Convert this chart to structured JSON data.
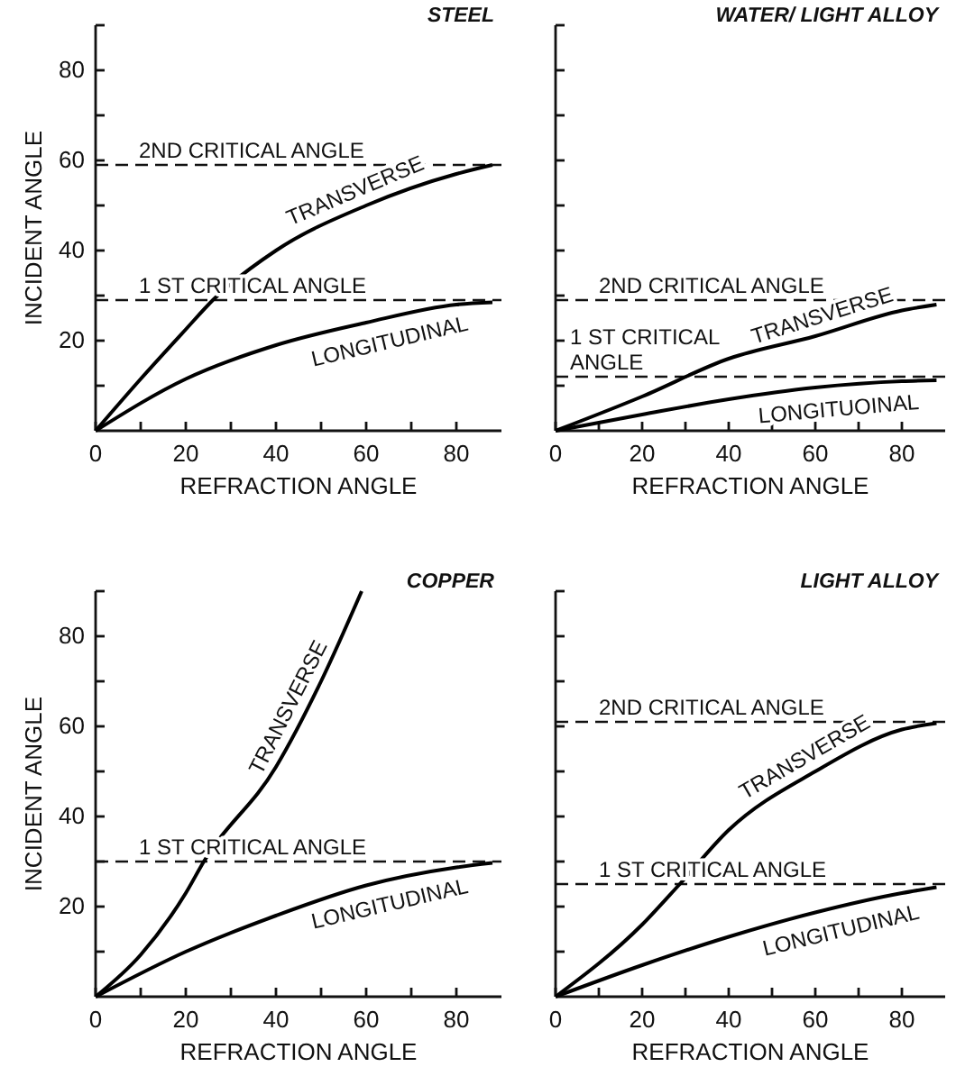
{
  "chart_data": [
    {
      "type": "line",
      "title": "STEEL",
      "xlabel": "REFRACTION ANGLE",
      "ylabel": "INCIDENT ANGLE",
      "xlim": [
        0,
        90
      ],
      "ylim": [
        0,
        90
      ],
      "xticks": [
        0,
        {
          "value": 10,
          "label": null
        },
        20,
        {
          "value": 30,
          "label": null
        },
        40,
        {
          "value": 50,
          "label": null
        },
        60,
        {
          "value": 70,
          "label": null
        },
        80
      ],
      "yticks": [
        {
          "value": 10,
          "label": null
        },
        20,
        {
          "value": 30,
          "label": null
        },
        40,
        {
          "value": 50,
          "label": null
        },
        60,
        {
          "value": 70,
          "label": null
        },
        80,
        {
          "value": 90,
          "label": null
        }
      ],
      "grid": false,
      "line_style": "solid",
      "series": [
        {
          "name": "TRANSVERSE",
          "color": "#000000",
          "x": [
            0,
            10,
            20,
            26,
            40,
            60,
            80,
            88
          ],
          "values": [
            0,
            11.5,
            22.5,
            29,
            40,
            50,
            57,
            59
          ]
        },
        {
          "name": "LONGITUDINAL",
          "color": "#000000",
          "x": [
            0,
            20,
            40,
            60,
            80,
            88
          ],
          "values": [
            0,
            11.5,
            19,
            24,
            28,
            28.5
          ]
        }
      ],
      "ref_lines": [
        {
          "axis": "y",
          "value": 59,
          "label": "2ND CRITICAL ANGLE",
          "line_style": "dashed"
        },
        {
          "axis": "y",
          "value": 29,
          "label": "1 ST CRITICAL ANGLE",
          "line_style": "dashed"
        }
      ]
    },
    {
      "type": "line",
      "title": "WATER/ LIGHT ALLOY",
      "xlabel": "REFRACTION ANGLE",
      "xlim": [
        0,
        90
      ],
      "ylim": [
        0,
        90
      ],
      "tick_labels": "x",
      "xticks": [
        0,
        {
          "value": 10,
          "label": null
        },
        20,
        {
          "value": 30,
          "label": null
        },
        40,
        {
          "value": 50,
          "label": null
        },
        60,
        {
          "value": 70,
          "label": null
        },
        80
      ],
      "yticks": [
        {
          "value": 10,
          "label": null
        },
        {
          "value": 20,
          "label": null
        },
        {
          "value": 30,
          "label": null
        },
        {
          "value": 40,
          "label": null
        },
        {
          "value": 50,
          "label": null
        },
        {
          "value": 60,
          "label": null
        },
        {
          "value": 70,
          "label": null
        },
        {
          "value": 80,
          "label": null
        },
        {
          "value": 90,
          "label": null
        }
      ],
      "grid": false,
      "line_style": "solid",
      "series": [
        {
          "name": "TRANSVERSE",
          "color": "#000000",
          "x": [
            0,
            20,
            40,
            60,
            80,
            88
          ],
          "values": [
            0,
            7.6,
            16,
            21,
            26.7,
            28
          ]
        },
        {
          "name": "LONGITUOINAL",
          "color": "#000000",
          "x": [
            0,
            20,
            40,
            60,
            80,
            88
          ],
          "values": [
            0,
            3.6,
            7,
            9.6,
            11,
            11.2
          ]
        }
      ],
      "ref_lines": [
        {
          "axis": "y",
          "value": 29,
          "label": "2ND CRITICAL ANGLE",
          "line_style": "dashed"
        },
        {
          "axis": "y",
          "value": 12,
          "label": "1 ST CRITICAL ANGLE",
          "line_style": "dashed"
        }
      ]
    },
    {
      "type": "line",
      "title": "COPPER",
      "xlabel": "REFRACTION ANGLE",
      "ylabel": "INCIDENT ANGLE",
      "xlim": [
        0,
        90
      ],
      "ylim": [
        0,
        90
      ],
      "xticks": [
        0,
        {
          "value": 10,
          "label": null
        },
        20,
        {
          "value": 30,
          "label": null
        },
        40,
        {
          "value": 50,
          "label": null
        },
        60,
        {
          "value": 70,
          "label": null
        },
        80
      ],
      "yticks": [
        {
          "value": 10,
          "label": null
        },
        20,
        {
          "value": 30,
          "label": null
        },
        40,
        {
          "value": 50,
          "label": null
        },
        60,
        {
          "value": 70,
          "label": null
        },
        80,
        {
          "value": 90,
          "label": null
        }
      ],
      "grid": false,
      "line_style": "solid",
      "series": [
        {
          "name": "TRANSVERSE",
          "color": "#000000",
          "x": [
            0,
            10,
            20,
            24,
            40,
            50,
            59
          ],
          "values": [
            0,
            9.3,
            23,
            30,
            51,
            70,
            90
          ]
        },
        {
          "name": "LONGITUDINAL",
          "color": "#000000",
          "x": [
            0,
            20,
            40,
            60,
            80,
            88
          ],
          "values": [
            0,
            10,
            18,
            24.7,
            28.7,
            29.7
          ]
        }
      ],
      "ref_lines": [
        {
          "axis": "y",
          "value": 30,
          "label": "1 ST CRITICAL ANGLE",
          "line_style": "dashed"
        }
      ]
    },
    {
      "type": "line",
      "title": "LIGHT ALLOY",
      "xlabel": "REFRACTION ANGLE",
      "xlim": [
        0,
        90
      ],
      "ylim": [
        0,
        90
      ],
      "tick_labels": "x",
      "xticks": [
        0,
        {
          "value": 10,
          "label": null
        },
        20,
        {
          "value": 30,
          "label": null
        },
        40,
        {
          "value": 50,
          "label": null
        },
        60,
        {
          "value": 70,
          "label": null
        },
        80
      ],
      "yticks": [
        {
          "value": 10,
          "label": null
        },
        {
          "value": 20,
          "label": null
        },
        {
          "value": 30,
          "label": null
        },
        {
          "value": 40,
          "label": null
        },
        {
          "value": 50,
          "label": null
        },
        {
          "value": 60,
          "label": null
        },
        {
          "value": 70,
          "label": null
        },
        {
          "value": 80,
          "label": null
        },
        {
          "value": 90,
          "label": null
        }
      ],
      "grid": false,
      "line_style": "solid",
      "series": [
        {
          "name": "TRANSVERSE",
          "color": "#000000",
          "x": [
            0,
            20,
            28.7,
            40,
            60,
            80,
            88
          ],
          "values": [
            0,
            16,
            25,
            37,
            50,
            59.3,
            60.7
          ]
        },
        {
          "name": "LONGITUDINAL",
          "color": "#000000",
          "x": [
            0,
            20,
            40,
            60,
            80,
            88
          ],
          "values": [
            0,
            7,
            13.3,
            18.7,
            23,
            24.3
          ]
        }
      ],
      "ref_lines": [
        {
          "axis": "y",
          "value": 61,
          "label": "2ND CRITICAL ANGLE",
          "line_style": "dashed"
        },
        {
          "axis": "y",
          "value": 25,
          "label": "1 ST CRITICAL ANGLE",
          "line_style": "dashed"
        }
      ]
    }
  ]
}
